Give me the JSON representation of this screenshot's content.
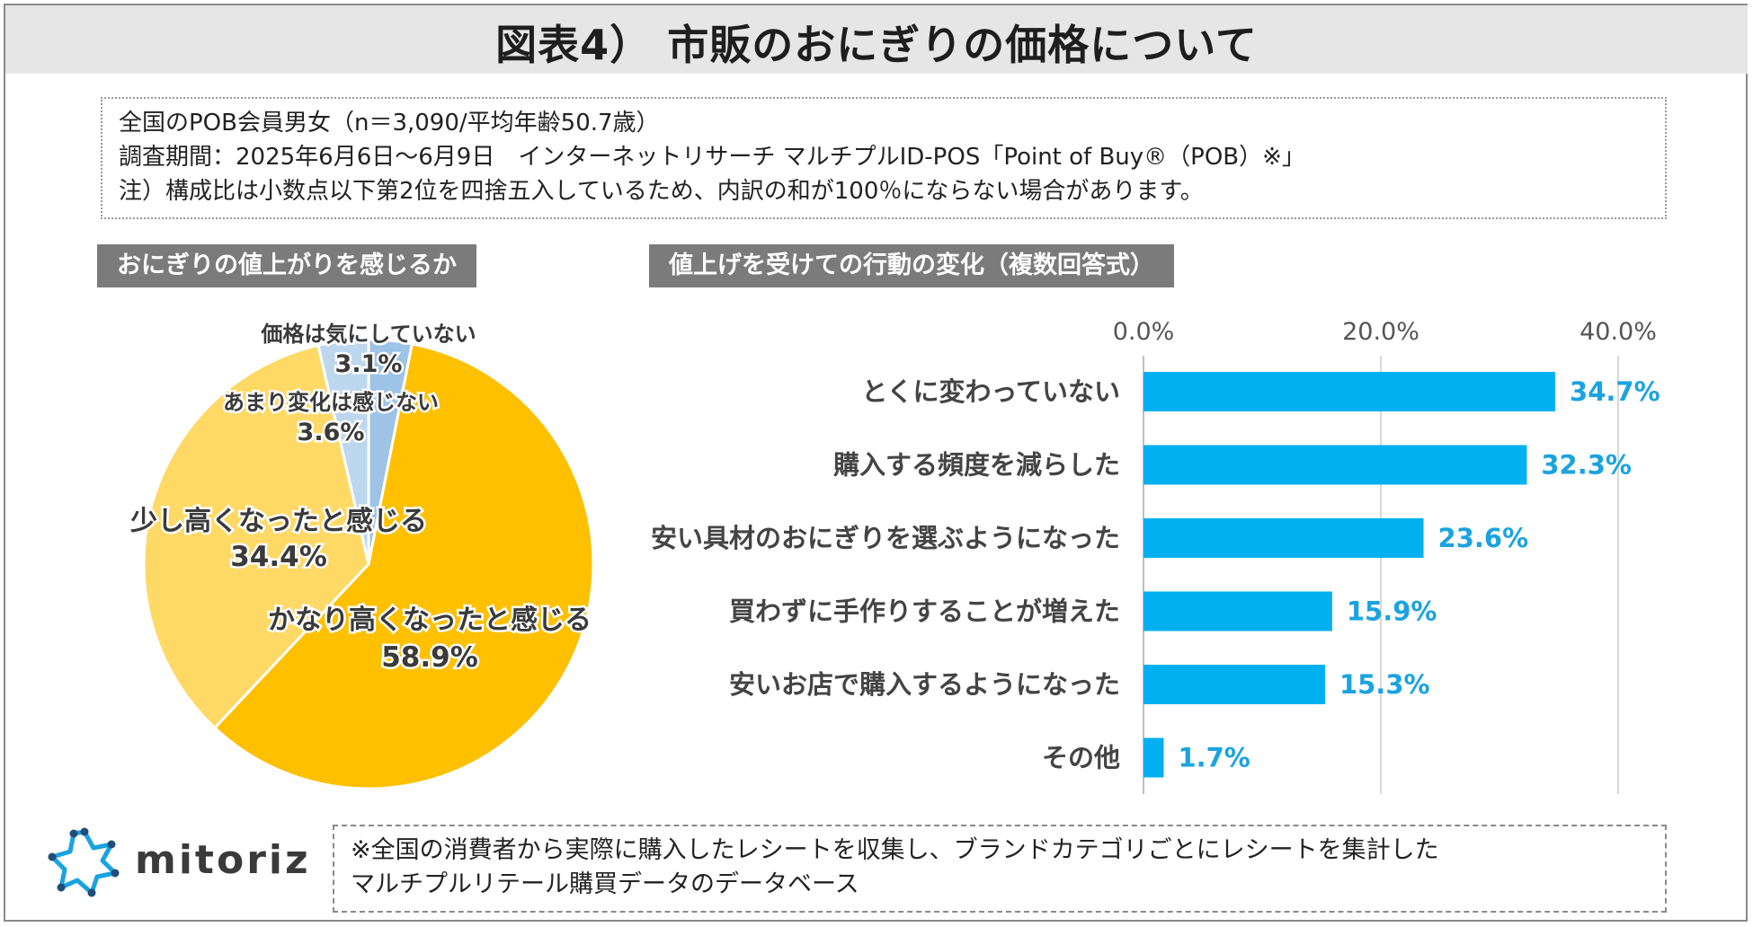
{
  "title": "図表4） 市販のおにぎりの価格について",
  "notes": [
    "全国のPOB会員男女（n＝3,090/平均年齢50.7歳）",
    "調査期間：2025年6月6日～6月9日　インターネットリサーチ マルチプルID-POS「Point of Buy®（POB）※」",
    "注）構成比は小数点以下第2位を四捨五入しているため、内訳の和が100％にならない場合があります。"
  ],
  "colors": {
    "pie_strong": "#ffc000",
    "pie_slight": "#ffd966",
    "pie_little": "#bdd7ee",
    "pie_none": "#9dc3e6",
    "bar": "#00b0f0",
    "bar_label": "#1aa3e0"
  },
  "chart_data": [
    {
      "type": "pie",
      "title": "おにぎりの値上がりを感じるか",
      "labels": [
        "価格は気にしていない",
        "かなり高くなったと感じる",
        "少し高くなったと感じる",
        "あまり変化は感じない"
      ],
      "values": [
        3.1,
        58.9,
        34.4,
        3.6
      ],
      "value_labels": [
        "3.1%",
        "58.9%",
        "34.4%",
        "3.6%"
      ],
      "start": "12 o'clock",
      "direction": "clockwise"
    },
    {
      "type": "bar",
      "orientation": "horizontal",
      "title": "値上げを受けての行動の変化（複数回答式）",
      "categories": [
        "とくに変わっていない",
        "購入する頻度を減らした",
        "安い具材のおにぎりを選ぶようになった",
        "買わずに手作りすることが増えた",
        "安いお店で購入するようになった",
        "その他"
      ],
      "values": [
        34.7,
        32.3,
        23.6,
        15.9,
        15.3,
        1.7
      ],
      "value_labels": [
        "34.7%",
        "32.3%",
        "23.6%",
        "15.9%",
        "15.3%",
        "1.7%"
      ],
      "xlim": [
        0,
        40
      ],
      "ticks": [
        0,
        20,
        40
      ],
      "tick_labels": [
        "0.0%",
        "20.0%",
        "40.0%"
      ],
      "grid": true
    }
  ],
  "logo": {
    "text": "mitoriz",
    "icon": "mitoriz-logo-icon"
  },
  "footnote": [
    "※全国の消費者から実際に購入したレシートを収集し、ブランドカテゴリごとにレシートを集計した",
    "マルチプルリテール購買データのデータベース"
  ]
}
